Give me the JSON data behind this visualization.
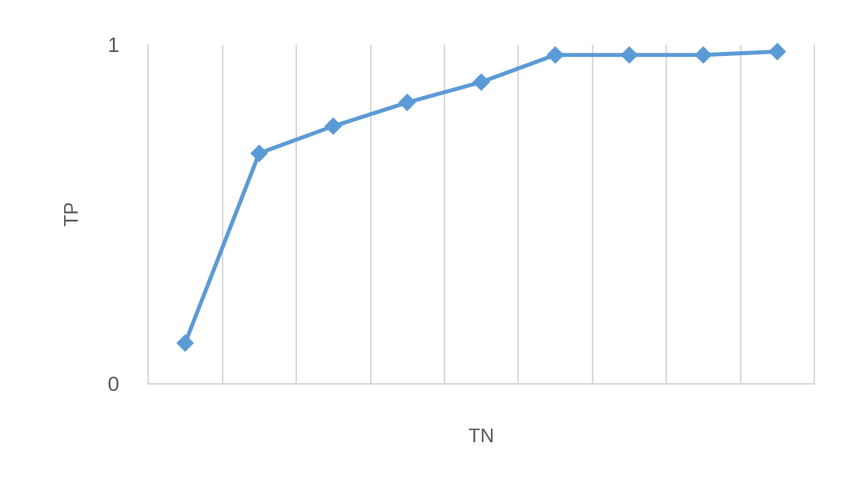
{
  "chart_data": {
    "type": "line",
    "xlabel": "TN",
    "ylabel": "TP",
    "categories": [
      null,
      null,
      null,
      null,
      null,
      null,
      null,
      null,
      null
    ],
    "series": [
      {
        "color": "#5b9bd5",
        "values": [
          0.12,
          0.68,
          0.76,
          0.83,
          0.89,
          0.97,
          0.97,
          0.97,
          0.98
        ]
      }
    ],
    "ylim": [
      0,
      1
    ],
    "yticks": [
      0,
      1
    ],
    "grid": "x",
    "marker": "diamond",
    "line_style": "solid"
  }
}
